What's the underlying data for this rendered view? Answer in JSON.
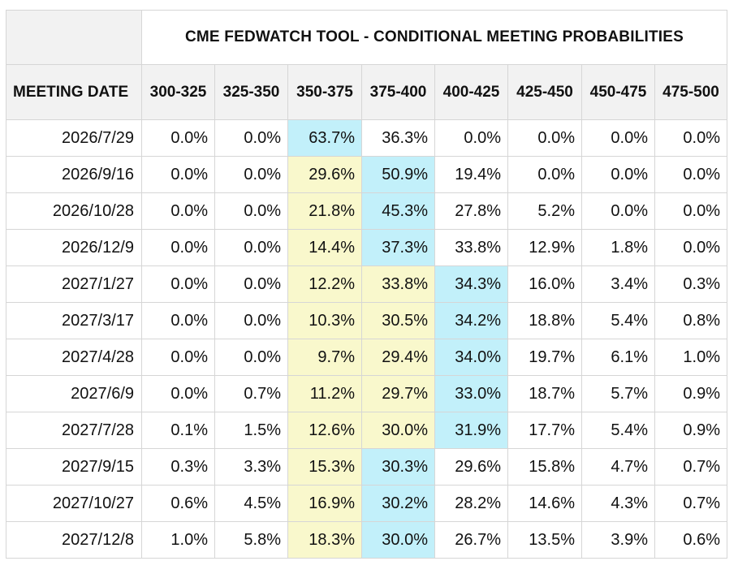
{
  "table": {
    "title": "CME FEDWATCH TOOL - CONDITIONAL MEETING PROBABILITIES",
    "date_header": "MEETING DATE",
    "columns": [
      "300-325",
      "325-350",
      "350-375",
      "375-400",
      "400-425",
      "425-450",
      "450-475",
      "475-500"
    ],
    "colors": {
      "most_likely": "#c2f0fa",
      "second_likely": "#f9f8cc",
      "header_bg": "#f2f2f2"
    },
    "rows": [
      {
        "date": "2026/7/29",
        "values": [
          "0.0%",
          "0.0%",
          "63.7%",
          "36.3%",
          "0.0%",
          "0.0%",
          "0.0%",
          "0.0%"
        ],
        "highlights": [
          "",
          "",
          "cyan",
          "",
          "",
          "",
          "",
          ""
        ]
      },
      {
        "date": "2026/9/16",
        "values": [
          "0.0%",
          "0.0%",
          "29.6%",
          "50.9%",
          "19.4%",
          "0.0%",
          "0.0%",
          "0.0%"
        ],
        "highlights": [
          "",
          "",
          "yellow",
          "cyan",
          "",
          "",
          "",
          ""
        ]
      },
      {
        "date": "2026/10/28",
        "values": [
          "0.0%",
          "0.0%",
          "21.8%",
          "45.3%",
          "27.8%",
          "5.2%",
          "0.0%",
          "0.0%"
        ],
        "highlights": [
          "",
          "",
          "yellow",
          "cyan",
          "",
          "",
          "",
          ""
        ]
      },
      {
        "date": "2026/12/9",
        "values": [
          "0.0%",
          "0.0%",
          "14.4%",
          "37.3%",
          "33.8%",
          "12.9%",
          "1.8%",
          "0.0%"
        ],
        "highlights": [
          "",
          "",
          "yellow",
          "cyan",
          "",
          "",
          "",
          ""
        ]
      },
      {
        "date": "2027/1/27",
        "values": [
          "0.0%",
          "0.0%",
          "12.2%",
          "33.8%",
          "34.3%",
          "16.0%",
          "3.4%",
          "0.3%"
        ],
        "highlights": [
          "",
          "",
          "yellow",
          "yellow",
          "cyan",
          "",
          "",
          ""
        ]
      },
      {
        "date": "2027/3/17",
        "values": [
          "0.0%",
          "0.0%",
          "10.3%",
          "30.5%",
          "34.2%",
          "18.8%",
          "5.4%",
          "0.8%"
        ],
        "highlights": [
          "",
          "",
          "yellow",
          "yellow",
          "cyan",
          "",
          "",
          ""
        ]
      },
      {
        "date": "2027/4/28",
        "values": [
          "0.0%",
          "0.0%",
          "9.7%",
          "29.4%",
          "34.0%",
          "19.7%",
          "6.1%",
          "1.0%"
        ],
        "highlights": [
          "",
          "",
          "yellow",
          "yellow",
          "cyan",
          "",
          "",
          ""
        ]
      },
      {
        "date": "2027/6/9",
        "values": [
          "0.0%",
          "0.7%",
          "11.2%",
          "29.7%",
          "33.0%",
          "18.7%",
          "5.7%",
          "0.9%"
        ],
        "highlights": [
          "",
          "",
          "yellow",
          "yellow",
          "cyan",
          "",
          "",
          ""
        ]
      },
      {
        "date": "2027/7/28",
        "values": [
          "0.1%",
          "1.5%",
          "12.6%",
          "30.0%",
          "31.9%",
          "17.7%",
          "5.4%",
          "0.9%"
        ],
        "highlights": [
          "",
          "",
          "yellow",
          "yellow",
          "cyan",
          "",
          "",
          ""
        ]
      },
      {
        "date": "2027/9/15",
        "values": [
          "0.3%",
          "3.3%",
          "15.3%",
          "30.3%",
          "29.6%",
          "15.8%",
          "4.7%",
          "0.7%"
        ],
        "highlights": [
          "",
          "",
          "yellow",
          "cyan",
          "",
          "",
          "",
          ""
        ]
      },
      {
        "date": "2027/10/27",
        "values": [
          "0.6%",
          "4.5%",
          "16.9%",
          "30.2%",
          "28.2%",
          "14.6%",
          "4.3%",
          "0.7%"
        ],
        "highlights": [
          "",
          "",
          "yellow",
          "cyan",
          "",
          "",
          "",
          ""
        ]
      },
      {
        "date": "2027/12/8",
        "values": [
          "1.0%",
          "5.8%",
          "18.3%",
          "30.0%",
          "26.7%",
          "13.5%",
          "3.9%",
          "0.6%"
        ],
        "highlights": [
          "",
          "",
          "yellow",
          "cyan",
          "",
          "",
          "",
          ""
        ]
      }
    ]
  }
}
